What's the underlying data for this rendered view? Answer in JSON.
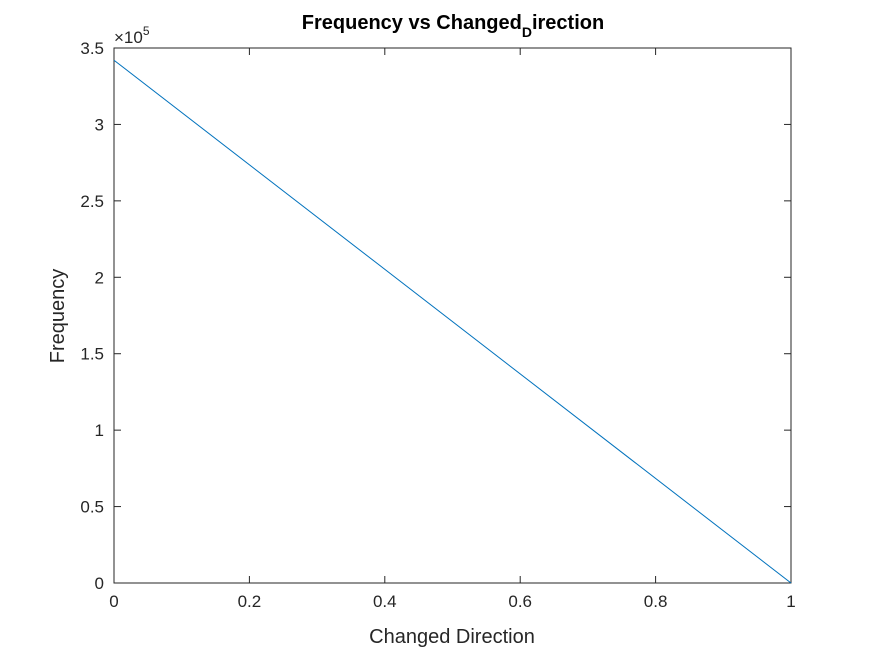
{
  "chart_data": {
    "type": "line",
    "title_main": "Frequency vs Changed",
    "title_sub": "D",
    "title_tail": "irection",
    "xlabel": "Changed Direction",
    "ylabel": "Frequency",
    "xlim": [
      0,
      1
    ],
    "ylim": [
      0,
      350000
    ],
    "x_ticks": [
      0,
      0.2,
      0.4,
      0.6,
      0.8,
      1
    ],
    "x_tick_labels": [
      "0",
      "0.2",
      "0.4",
      "0.6",
      "0.8",
      "1"
    ],
    "y_ticks": [
      0,
      50000,
      100000,
      150000,
      200000,
      250000,
      300000,
      350000
    ],
    "y_tick_labels": [
      "0",
      "0.5",
      "1",
      "1.5",
      "2",
      "2.5",
      "3",
      "3.5"
    ],
    "y_multiplier_base": "×10",
    "y_multiplier_exp": "5",
    "grid": false,
    "series": [
      {
        "color": "#0072bd",
        "x": [
          0,
          1
        ],
        "y": [
          342000,
          0
        ]
      }
    ]
  }
}
